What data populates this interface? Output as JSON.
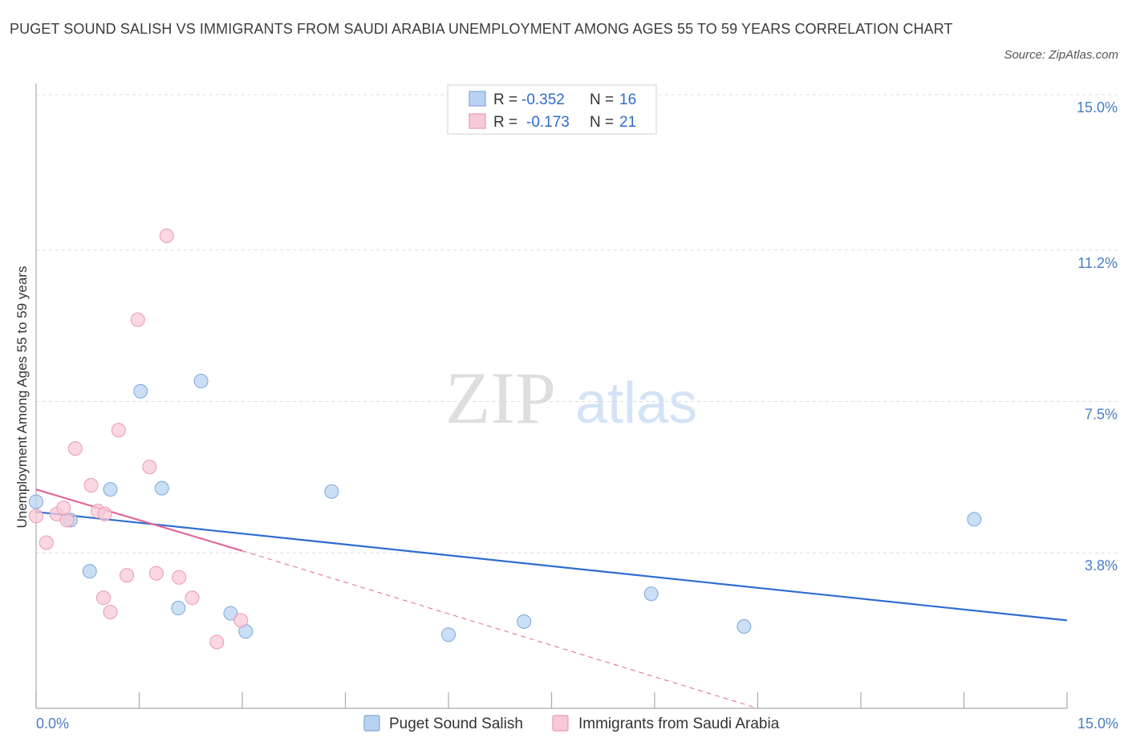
{
  "title": "PUGET SOUND SALISH VS IMMIGRANTS FROM SAUDI ARABIA UNEMPLOYMENT AMONG AGES 55 TO 59 YEARS CORRELATION CHART",
  "source": "Source: ZipAtlas.com",
  "watermark": {
    "zip": "ZIP",
    "atlas": "atlas"
  },
  "legend": {
    "rows": [
      {
        "r_label": "R =",
        "r_value": "-0.352",
        "n_label": "N =",
        "n_value": "16"
      },
      {
        "r_label": "R =",
        "r_value": "-0.173",
        "n_label": "N =",
        "n_value": "21"
      }
    ]
  },
  "colors": {
    "blue_fill": "#b8d3f2",
    "blue_stroke": "#7fa8d9",
    "blue_line": "#2f6cd1",
    "pink_fill": "#f8c9d7",
    "pink_stroke": "#e89ab2",
    "pink_line": "#e0689a",
    "grid": "#dcdcdc",
    "axis_text": "#4a7cc4"
  },
  "chart_data": {
    "type": "scatter",
    "xlabel": "",
    "ylabel": "Unemployment Among Ages 55 to 59 years",
    "xlim": [
      0,
      15
    ],
    "ylim": [
      0,
      15
    ],
    "x_tick_labels": [
      "0.0%",
      "15.0%"
    ],
    "y_ticks": [
      {
        "value": 15.0,
        "label": "15.0%"
      },
      {
        "value": 11.2,
        "label": "11.2%"
      },
      {
        "value": 7.5,
        "label": "7.5%"
      },
      {
        "value": 3.8,
        "label": "3.8%"
      }
    ],
    "grid": true,
    "series": [
      {
        "name": "Puget Sound Salish",
        "color": "blue",
        "points": [
          {
            "x": 0.0,
            "y": 5.05
          },
          {
            "x": 0.5,
            "y": 4.6
          },
          {
            "x": 0.78,
            "y": 3.35
          },
          {
            "x": 1.08,
            "y": 5.35
          },
          {
            "x": 1.52,
            "y": 7.75
          },
          {
            "x": 1.83,
            "y": 5.38
          },
          {
            "x": 2.07,
            "y": 2.45
          },
          {
            "x": 2.4,
            "y": 8.0
          },
          {
            "x": 2.83,
            "y": 2.32
          },
          {
            "x": 3.05,
            "y": 1.88
          },
          {
            "x": 4.3,
            "y": 5.3
          },
          {
            "x": 6.0,
            "y": 1.8
          },
          {
            "x": 7.1,
            "y": 2.12
          },
          {
            "x": 8.95,
            "y": 2.8
          },
          {
            "x": 10.3,
            "y": 2.0
          },
          {
            "x": 13.65,
            "y": 4.62
          }
        ]
      },
      {
        "name": "Immigrants from Saudi Arabia",
        "color": "pink",
        "points": [
          {
            "x": 0.0,
            "y": 4.7
          },
          {
            "x": 0.15,
            "y": 4.05
          },
          {
            "x": 0.3,
            "y": 4.75
          },
          {
            "x": 0.45,
            "y": 4.6
          },
          {
            "x": 0.57,
            "y": 6.35
          },
          {
            "x": 0.8,
            "y": 5.45
          },
          {
            "x": 0.9,
            "y": 4.82
          },
          {
            "x": 1.0,
            "y": 4.75
          },
          {
            "x": 0.98,
            "y": 2.7
          },
          {
            "x": 1.08,
            "y": 2.35
          },
          {
            "x": 1.2,
            "y": 6.8
          },
          {
            "x": 1.32,
            "y": 3.25
          },
          {
            "x": 1.48,
            "y": 9.5
          },
          {
            "x": 1.65,
            "y": 5.9
          },
          {
            "x": 1.75,
            "y": 3.3
          },
          {
            "x": 1.9,
            "y": 11.55
          },
          {
            "x": 2.08,
            "y": 3.2
          },
          {
            "x": 2.27,
            "y": 2.7
          },
          {
            "x": 2.63,
            "y": 1.62
          },
          {
            "x": 2.98,
            "y": 2.15
          },
          {
            "x": 0.4,
            "y": 4.9
          }
        ]
      }
    ],
    "trend_lines": [
      {
        "series": "Puget Sound Salish",
        "x": [
          0.0,
          15.0
        ],
        "y": [
          4.8,
          2.15
        ],
        "style": "solid"
      },
      {
        "series": "Immigrants from Saudi Arabia",
        "x": [
          0.0,
          3.0
        ],
        "y": [
          5.35,
          3.85
        ],
        "style": "solid"
      },
      {
        "series": "Immigrants from Saudi Arabia",
        "x": [
          3.0,
          10.5
        ],
        "y": [
          3.85,
          0.0
        ],
        "style": "dashed"
      }
    ]
  }
}
